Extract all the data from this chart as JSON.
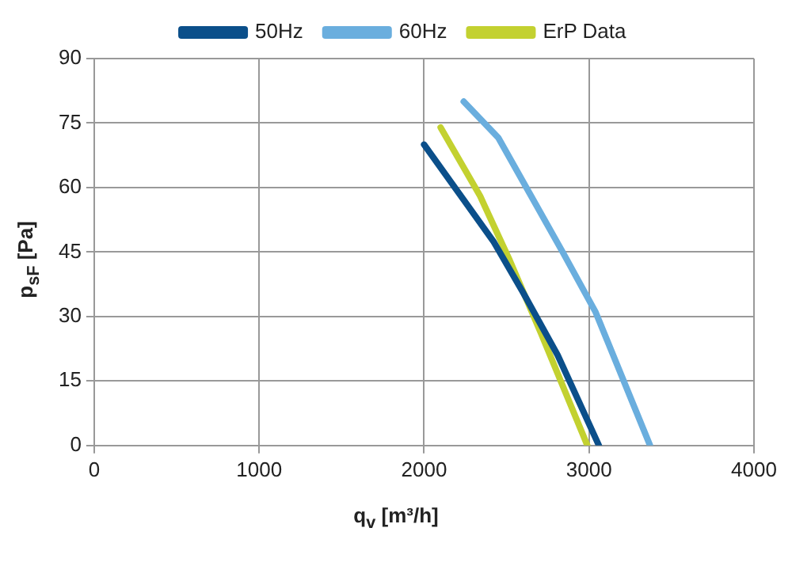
{
  "chart_data": {
    "type": "line",
    "xlabel": "q$_{v}$ [m³/h]",
    "ylabel": "p$_{sF}$ [Pa]",
    "xlim": [
      0,
      4000
    ],
    "xticks": [
      0,
      1000,
      2000,
      3000,
      4000
    ],
    "ylim": [
      0,
      90
    ],
    "yticks": [
      0,
      15,
      30,
      45,
      60,
      75,
      90
    ],
    "grid": true,
    "legend": "top",
    "marker": "none",
    "line_style": "solid",
    "series": [
      {
        "name": "50Hz",
        "color": "#0b4f8a",
        "x": [
          2000,
          2420,
          2600,
          2810,
          3060
        ],
        "values": [
          70,
          47.5,
          35.6,
          21,
          0
        ]
      },
      {
        "name": "60Hz",
        "color": "#6aaede",
        "x": [
          2240,
          2450,
          2840,
          3040,
          3370
        ],
        "values": [
          80,
          71.6,
          45,
          31,
          0
        ]
      },
      {
        "name": "ErP Data",
        "color": "#c3d130",
        "x": [
          2100,
          2340,
          2520,
          2710,
          2990
        ],
        "values": [
          74,
          58,
          43,
          26,
          0
        ]
      }
    ]
  }
}
